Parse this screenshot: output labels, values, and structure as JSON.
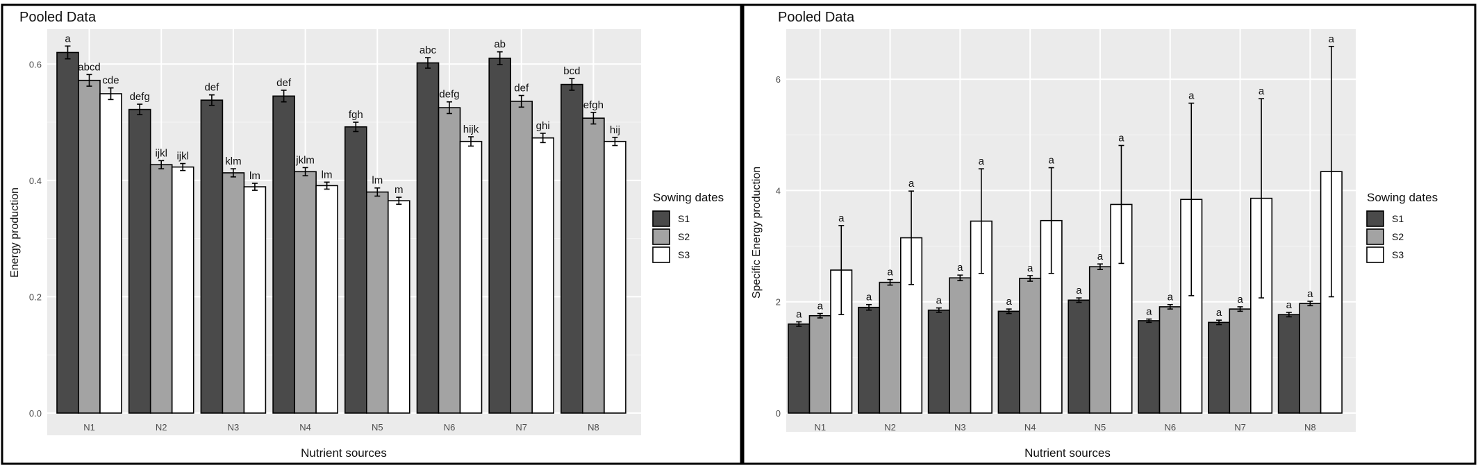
{
  "figure": {
    "colors": {
      "S1": "#4a4a4a",
      "S2": "#a3a3a3",
      "S3": "#ffffff",
      "panel_bg": "#ebebeb",
      "border": "#000000"
    }
  },
  "chart_data": [
    {
      "type": "bar",
      "title": "Pooled Data",
      "xlabel": "Nutrient sources",
      "ylabel": "Energy production",
      "categories": [
        "N1",
        "N2",
        "N3",
        "N4",
        "N5",
        "N6",
        "N7",
        "N8"
      ],
      "ylim": [
        0,
        0.66
      ],
      "yticks": [
        0.0,
        0.2,
        0.4,
        0.6
      ],
      "ytick_labels": [
        "0.0",
        "0.2",
        "0.4",
        "0.6"
      ],
      "grid": true,
      "legend": {
        "title": "Sowing dates",
        "position": "right"
      },
      "series": [
        {
          "name": "S1",
          "values": [
            0.62,
            0.522,
            0.538,
            0.545,
            0.492,
            0.602,
            0.61,
            0.565
          ],
          "errors": [
            0.011,
            0.009,
            0.009,
            0.01,
            0.008,
            0.009,
            0.011,
            0.01
          ],
          "labels": [
            "a",
            "defg",
            "def",
            "def",
            "fgh",
            "abc",
            "ab",
            "bcd"
          ]
        },
        {
          "name": "S2",
          "values": [
            0.572,
            0.427,
            0.413,
            0.415,
            0.38,
            0.525,
            0.536,
            0.507
          ],
          "errors": [
            0.01,
            0.007,
            0.007,
            0.007,
            0.007,
            0.01,
            0.01,
            0.01
          ],
          "labels": [
            "abcd",
            "ijkl",
            "klm",
            "jklm",
            "lm",
            "defg",
            "def",
            "efgh"
          ]
        },
        {
          "name": "S3",
          "values": [
            0.549,
            0.423,
            0.389,
            0.391,
            0.365,
            0.467,
            0.473,
            0.467
          ],
          "errors": [
            0.01,
            0.006,
            0.006,
            0.006,
            0.006,
            0.008,
            0.008,
            0.007
          ],
          "labels": [
            "cde",
            "ijkl",
            "lm",
            "lm",
            "m",
            "hijk",
            "ghi",
            "hij"
          ]
        }
      ]
    },
    {
      "type": "bar",
      "title": "Pooled Data",
      "xlabel": "Nutrient sources",
      "ylabel": "Specific Energy production",
      "categories": [
        "N1",
        "N2",
        "N3",
        "N4",
        "N5",
        "N6",
        "N7",
        "N8"
      ],
      "ylim": [
        0,
        6.9
      ],
      "yticks": [
        0,
        2,
        4,
        6
      ],
      "ytick_labels": [
        "0",
        "2",
        "4",
        "6"
      ],
      "grid": true,
      "legend": {
        "title": "Sowing dates",
        "position": "right"
      },
      "series": [
        {
          "name": "S1",
          "values": [
            1.6,
            1.9,
            1.85,
            1.83,
            2.03,
            1.66,
            1.63,
            1.77
          ],
          "errors": [
            0.04,
            0.05,
            0.04,
            0.04,
            0.04,
            0.03,
            0.04,
            0.04
          ],
          "labels": [
            "a",
            "a",
            "a",
            "a",
            "a",
            "a",
            "a",
            "a"
          ]
        },
        {
          "name": "S2",
          "values": [
            1.75,
            2.35,
            2.43,
            2.42,
            2.63,
            1.91,
            1.87,
            1.97
          ],
          "errors": [
            0.04,
            0.05,
            0.05,
            0.05,
            0.05,
            0.04,
            0.04,
            0.04
          ],
          "labels": [
            "a",
            "a",
            "a",
            "a",
            "a",
            "a",
            "a",
            "a"
          ]
        },
        {
          "name": "S3",
          "values": [
            2.57,
            3.15,
            3.45,
            3.46,
            3.75,
            3.84,
            3.86,
            4.34
          ],
          "errors": [
            0.8,
            0.84,
            0.94,
            0.95,
            1.06,
            1.73,
            1.79,
            2.25
          ],
          "labels": [
            "a",
            "a",
            "a",
            "a",
            "a",
            "a",
            "a",
            "a"
          ]
        }
      ]
    }
  ]
}
